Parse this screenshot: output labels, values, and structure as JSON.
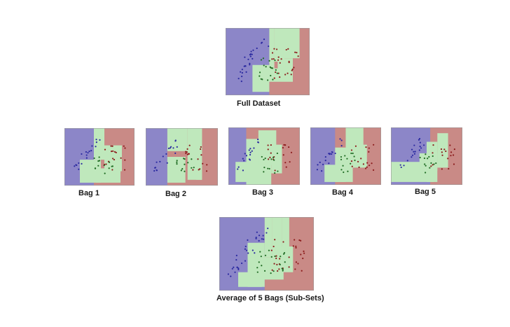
{
  "diagram": {
    "full_label": "Full Dataset",
    "bags": [
      {
        "label": "Bag 1"
      },
      {
        "label": "Bag 2"
      },
      {
        "label": "Bag 3"
      },
      {
        "label": "Bag 4"
      },
      {
        "label": "Bag 5"
      }
    ],
    "average_label": "Average of 5 Bags (Sub-Sets)"
  },
  "colors": {
    "class_blue_region": "#8c86c8",
    "class_green_region": "#bfe8bc",
    "class_red_region": "#c98a86",
    "blue_points": "#2b2aa0",
    "red_points": "#8c1c1c",
    "green_points": "#1f6b23"
  }
}
